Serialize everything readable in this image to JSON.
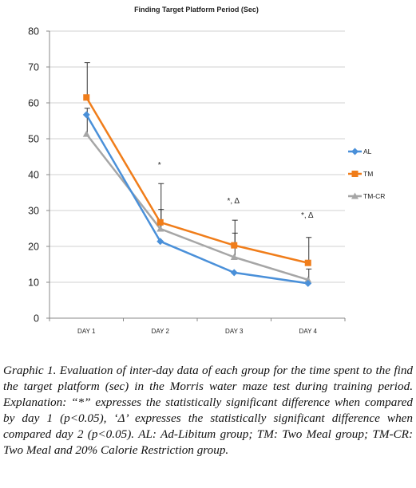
{
  "chart_data": {
    "type": "line",
    "title": "Finding Target Platform Period (Sec)",
    "categories": [
      "DAY 1",
      "DAY 2",
      "DAY 3",
      "DAY 4"
    ],
    "ylim": [
      0,
      80
    ],
    "yticks": [
      "0",
      "10",
      "20",
      "30",
      "40",
      "50",
      "60",
      "70",
      "80"
    ],
    "grid": true,
    "legend_position": "right",
    "series": [
      {
        "name": "AL",
        "color": "#4A90D9",
        "marker": "diamond",
        "values": [
          56.7,
          21.4,
          12.7,
          9.7
        ],
        "error_plus": [
          null,
          null,
          null,
          null
        ]
      },
      {
        "name": "TM",
        "color": "#F07D1A",
        "marker": "square",
        "values": [
          61.5,
          26.7,
          20.3,
          15.4
        ],
        "error_plus": [
          71.2,
          37.5,
          27.3,
          22.5
        ]
      },
      {
        "name": "TM-CR",
        "color": "#A6A6A6",
        "marker": "triangle",
        "values": [
          51.3,
          24.9,
          17.0,
          10.7
        ],
        "error_plus": [
          58.5,
          30.3,
          23.7,
          13.7
        ]
      }
    ],
    "annotations": [
      {
        "category_index": 1,
        "text": "*",
        "y": 42
      },
      {
        "category_index": 2,
        "text": "*, Δ",
        "y": 32
      },
      {
        "category_index": 3,
        "text": "*, Δ",
        "y": 28
      }
    ]
  },
  "caption": {
    "lead": "Graphic 1.",
    "body": "Evaluation of inter-day data of each group for the time spent to the find the target platform (sec) in the Morris water maze test during training period. Explanation: “*” expresses the statistically significant difference when compared by day 1 (p<0.05), ‘Δ’ expresses the statistically significant difference when compared day 2 (p<0.05). AL: Ad-Libitum group; TM: Two Meal group; TM-CR: Two Meal and 20% Calorie Restriction group."
  }
}
